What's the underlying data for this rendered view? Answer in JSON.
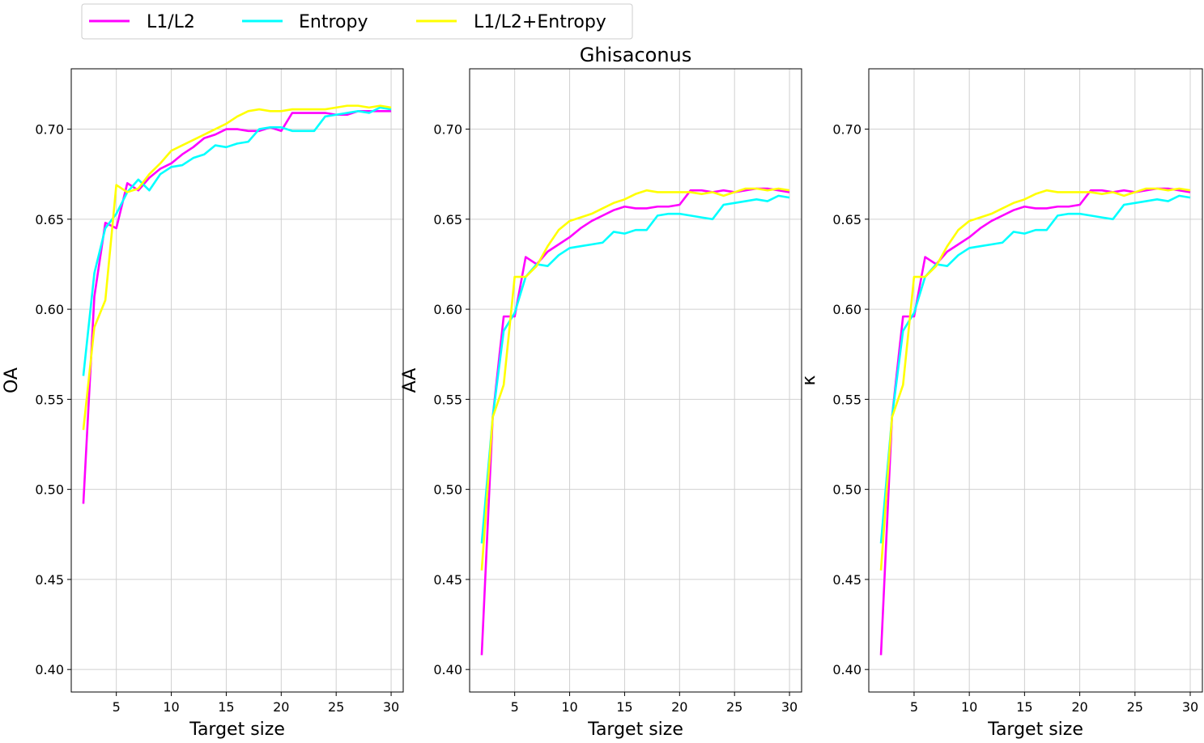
{
  "figure_title": "Ghisaconus",
  "legend": {
    "placement": "top-left, outside axes",
    "entries": [
      {
        "label": "L1/L2",
        "color": "#ff00ff"
      },
      {
        "label": "Entropy",
        "color": "#00ffff"
      },
      {
        "label": "L1/L2+Entropy",
        "color": "#ffff00"
      }
    ]
  },
  "chart_data": [
    {
      "type": "line",
      "title": "",
      "xlabel": "Target size",
      "ylabel": "OA",
      "xlim": [
        0.9,
        31.1
      ],
      "ylim": [
        0.3875,
        0.7335
      ],
      "xticks": [
        5,
        10,
        15,
        20,
        25,
        30
      ],
      "yticks": [
        0.4,
        0.45,
        0.5,
        0.55,
        0.6,
        0.65,
        0.7
      ],
      "ytick_labels": [
        "0.40",
        "0.45",
        "0.50",
        "0.55",
        "0.60",
        "0.65",
        "0.70"
      ],
      "grid": true,
      "x": [
        2,
        3,
        4,
        5,
        6,
        7,
        8,
        9,
        10,
        11,
        12,
        13,
        14,
        15,
        16,
        17,
        18,
        19,
        20,
        21,
        22,
        23,
        24,
        25,
        26,
        27,
        28,
        29,
        30
      ],
      "series": [
        {
          "name": "L1/L2",
          "color": "#ff00ff",
          "values": [
            0.492,
            0.607,
            0.648,
            0.645,
            0.67,
            0.666,
            0.673,
            0.678,
            0.681,
            0.686,
            0.69,
            0.695,
            0.697,
            0.7,
            0.7,
            0.699,
            0.699,
            0.701,
            0.699,
            0.709,
            0.709,
            0.709,
            0.709,
            0.708,
            0.708,
            0.71,
            0.71,
            0.71,
            0.71
          ]
        },
        {
          "name": "Entropy",
          "color": "#00ffff",
          "values": [
            0.563,
            0.62,
            0.645,
            0.653,
            0.665,
            0.672,
            0.666,
            0.675,
            0.679,
            0.68,
            0.684,
            0.686,
            0.691,
            0.69,
            0.692,
            0.693,
            0.7,
            0.701,
            0.701,
            0.699,
            0.699,
            0.699,
            0.707,
            0.708,
            0.709,
            0.71,
            0.709,
            0.712,
            0.711
          ]
        },
        {
          "name": "L1/L2+Entropy",
          "color": "#ffff00",
          "values": [
            0.533,
            0.59,
            0.605,
            0.669,
            0.665,
            0.667,
            0.675,
            0.681,
            0.688,
            0.691,
            0.694,
            0.697,
            0.7,
            0.703,
            0.707,
            0.71,
            0.711,
            0.71,
            0.71,
            0.711,
            0.711,
            0.711,
            0.711,
            0.712,
            0.713,
            0.713,
            0.712,
            0.713,
            0.712
          ]
        }
      ]
    },
    {
      "type": "line",
      "title": "",
      "xlabel": "Target size",
      "ylabel": "AA",
      "xlim": [
        0.9,
        31.1
      ],
      "ylim": [
        0.3875,
        0.7335
      ],
      "xticks": [
        5,
        10,
        15,
        20,
        25,
        30
      ],
      "yticks": [
        0.4,
        0.45,
        0.5,
        0.55,
        0.6,
        0.65,
        0.7
      ],
      "ytick_labels": [
        "0.40",
        "0.45",
        "0.50",
        "0.55",
        "0.60",
        "0.65",
        "0.70"
      ],
      "grid": true,
      "x": [
        2,
        3,
        4,
        5,
        6,
        7,
        8,
        9,
        10,
        11,
        12,
        13,
        14,
        15,
        16,
        17,
        18,
        19,
        20,
        21,
        22,
        23,
        24,
        25,
        26,
        27,
        28,
        29,
        30
      ],
      "series": [
        {
          "name": "L1/L2",
          "color": "#ff00ff",
          "values": [
            0.408,
            0.54,
            0.596,
            0.596,
            0.629,
            0.625,
            0.632,
            0.636,
            0.64,
            0.645,
            0.649,
            0.652,
            0.655,
            0.657,
            0.656,
            0.656,
            0.657,
            0.657,
            0.658,
            0.666,
            0.666,
            0.665,
            0.666,
            0.665,
            0.666,
            0.667,
            0.667,
            0.666,
            0.665
          ]
        },
        {
          "name": "Entropy",
          "color": "#00ffff",
          "values": [
            0.47,
            0.54,
            0.588,
            0.598,
            0.618,
            0.625,
            0.624,
            0.63,
            0.634,
            0.635,
            0.636,
            0.637,
            0.643,
            0.642,
            0.644,
            0.644,
            0.652,
            0.653,
            0.653,
            0.652,
            0.651,
            0.65,
            0.658,
            0.659,
            0.66,
            0.661,
            0.66,
            0.663,
            0.662
          ]
        },
        {
          "name": "L1/L2+Entropy",
          "color": "#ffff00",
          "values": [
            0.455,
            0.54,
            0.558,
            0.618,
            0.618,
            0.624,
            0.635,
            0.644,
            0.649,
            0.651,
            0.653,
            0.656,
            0.659,
            0.661,
            0.664,
            0.666,
            0.665,
            0.665,
            0.665,
            0.665,
            0.664,
            0.665,
            0.663,
            0.665,
            0.667,
            0.667,
            0.666,
            0.667,
            0.666
          ]
        }
      ]
    },
    {
      "type": "line",
      "title": "",
      "xlabel": "Target size",
      "ylabel": "κ",
      "xlim": [
        0.9,
        31.1
      ],
      "ylim": [
        0.3875,
        0.7335
      ],
      "xticks": [
        5,
        10,
        15,
        20,
        25,
        30
      ],
      "yticks": [
        0.4,
        0.45,
        0.5,
        0.55,
        0.6,
        0.65,
        0.7
      ],
      "ytick_labels": [
        "0.40",
        "0.45",
        "0.50",
        "0.55",
        "0.60",
        "0.65",
        "0.70"
      ],
      "grid": true,
      "x": [
        2,
        3,
        4,
        5,
        6,
        7,
        8,
        9,
        10,
        11,
        12,
        13,
        14,
        15,
        16,
        17,
        18,
        19,
        20,
        21,
        22,
        23,
        24,
        25,
        26,
        27,
        28,
        29,
        30
      ],
      "series": [
        {
          "name": "L1/L2",
          "color": "#ff00ff",
          "values": [
            0.408,
            0.54,
            0.596,
            0.596,
            0.629,
            0.625,
            0.632,
            0.636,
            0.64,
            0.645,
            0.649,
            0.652,
            0.655,
            0.657,
            0.656,
            0.656,
            0.657,
            0.657,
            0.658,
            0.666,
            0.666,
            0.665,
            0.666,
            0.665,
            0.666,
            0.667,
            0.667,
            0.666,
            0.665
          ]
        },
        {
          "name": "Entropy",
          "color": "#00ffff",
          "values": [
            0.47,
            0.54,
            0.588,
            0.598,
            0.618,
            0.625,
            0.624,
            0.63,
            0.634,
            0.635,
            0.636,
            0.637,
            0.643,
            0.642,
            0.644,
            0.644,
            0.652,
            0.653,
            0.653,
            0.652,
            0.651,
            0.65,
            0.658,
            0.659,
            0.66,
            0.661,
            0.66,
            0.663,
            0.662
          ]
        },
        {
          "name": "L1/L2+Entropy",
          "color": "#ffff00",
          "values": [
            0.455,
            0.54,
            0.558,
            0.618,
            0.618,
            0.624,
            0.635,
            0.644,
            0.649,
            0.651,
            0.653,
            0.656,
            0.659,
            0.661,
            0.664,
            0.666,
            0.665,
            0.665,
            0.665,
            0.665,
            0.664,
            0.665,
            0.663,
            0.665,
            0.667,
            0.667,
            0.666,
            0.667,
            0.666
          ]
        }
      ]
    }
  ]
}
